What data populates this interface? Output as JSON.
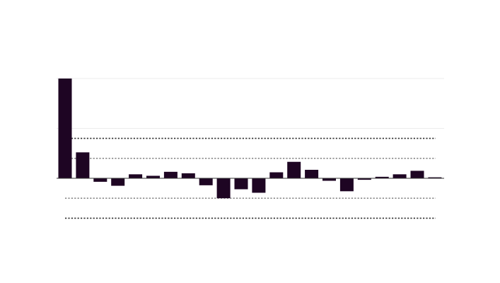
{
  "chart_data": {
    "type": "bar",
    "values": [
      1.0,
      0.26,
      -0.035,
      -0.075,
      0.04,
      0.025,
      0.065,
      0.05,
      -0.07,
      -0.2,
      -0.11,
      -0.145,
      0.06,
      0.165,
      0.085,
      -0.025,
      -0.13,
      -0.015,
      0.015,
      0.04,
      0.075,
      0.01
    ],
    "ylim": [
      -0.45,
      1.0
    ],
    "bar_color": "#1e0523",
    "gridline_color": "#ececec",
    "baseline_color": "#333333",
    "reference_line_color": "#2f2f2f",
    "reference_lines_outer": [
      0.4,
      -0.4
    ],
    "reference_lines_inner": [
      0.2,
      -0.2
    ],
    "grid": true,
    "legend": "none"
  }
}
